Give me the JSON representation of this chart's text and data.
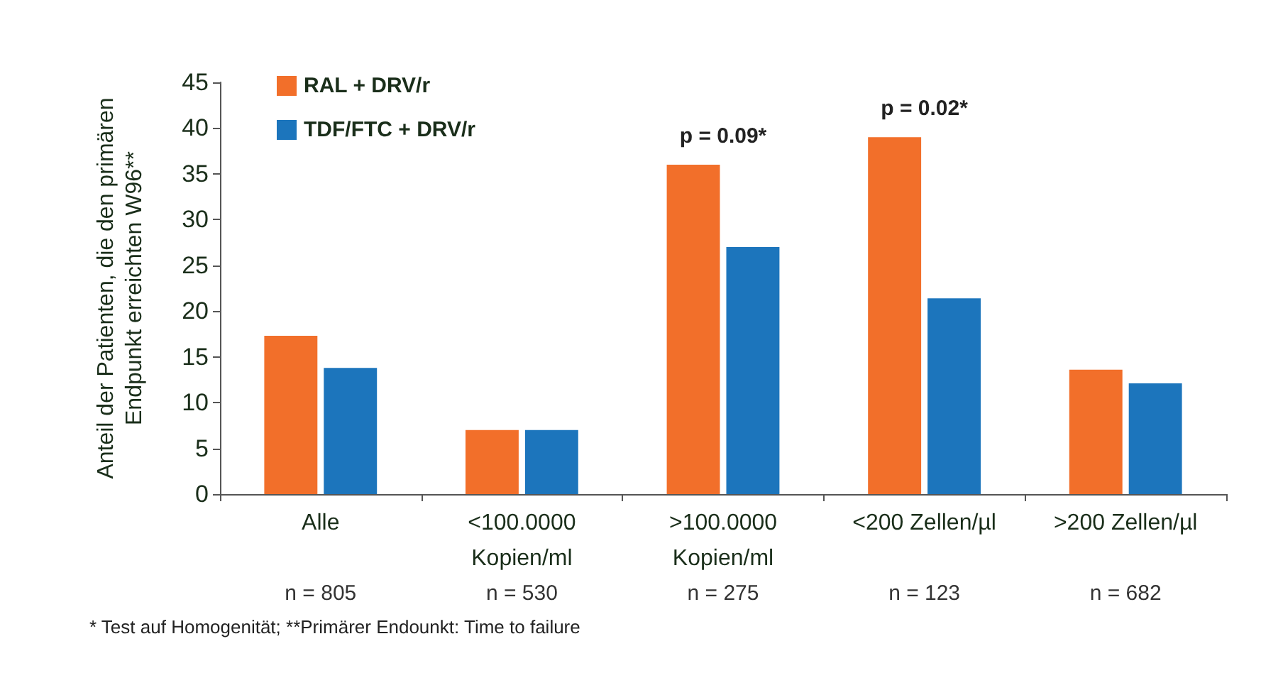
{
  "chart_data": {
    "type": "bar",
    "ylabel": "Anteil der Patienten, die den primären\nEndpunkt erreichten W96**",
    "categories": [
      "Alle",
      "<100.0000\nKopien/ml",
      ">100.0000\nKopien/ml",
      "<200 Zellen/µl",
      ">200 Zellen/µl"
    ],
    "series": [
      {
        "name": "RAL + DRV/r",
        "color": "#f26f2a",
        "values": [
          17.3,
          7,
          36,
          39,
          13.6
        ]
      },
      {
        "name": "TDF/FTC + DRV/r",
        "color": "#1c75bc",
        "values": [
          13.8,
          7,
          27,
          21.4,
          12.1
        ]
      }
    ],
    "ylim": [
      0,
      45
    ],
    "yticks": [
      0,
      5,
      10,
      15,
      20,
      25,
      30,
      35,
      40,
      45
    ],
    "grid": false,
    "legend": "top left",
    "annotations": [
      "p = 0.09*",
      "p = 0.02*",
      "n = 805",
      "n = 530",
      "n = 275",
      "n = 123",
      "n = 682",
      "* Test auf Homogenität; **Primärer Endounkt: Time to failure"
    ]
  }
}
